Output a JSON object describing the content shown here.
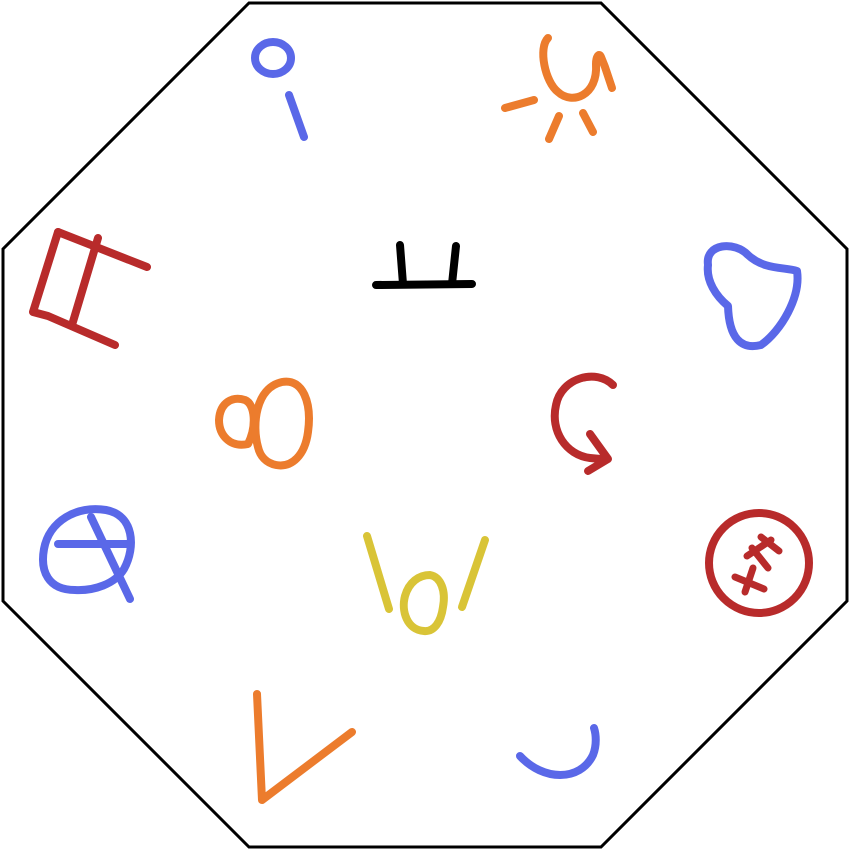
{
  "board": {
    "shape": "octagon",
    "background": "#ffffff",
    "border_color": "#000000"
  },
  "symbols": [
    {
      "id": "top-left-ring-stick",
      "color": "#5a68e8"
    },
    {
      "id": "top-right-sun",
      "color": "#ec7c2d"
    },
    {
      "id": "left-gate",
      "color": "#b82b2b"
    },
    {
      "id": "center-double-tick",
      "color": "#000000"
    },
    {
      "id": "right-heart",
      "color": "#5a68e8"
    },
    {
      "id": "center-left-loops",
      "color": "#ec7c2d"
    },
    {
      "id": "center-right-hook-arrow",
      "color": "#b82b2b"
    },
    {
      "id": "left-q-circle",
      "color": "#5a68e8"
    },
    {
      "id": "center-bottom-mouth",
      "color": "#d9c437"
    },
    {
      "id": "right-circle-crosses",
      "color": "#b82b2b"
    },
    {
      "id": "bottom-left-v",
      "color": "#ec7c2d"
    },
    {
      "id": "bottom-right-arc",
      "color": "#5a68e8"
    }
  ]
}
